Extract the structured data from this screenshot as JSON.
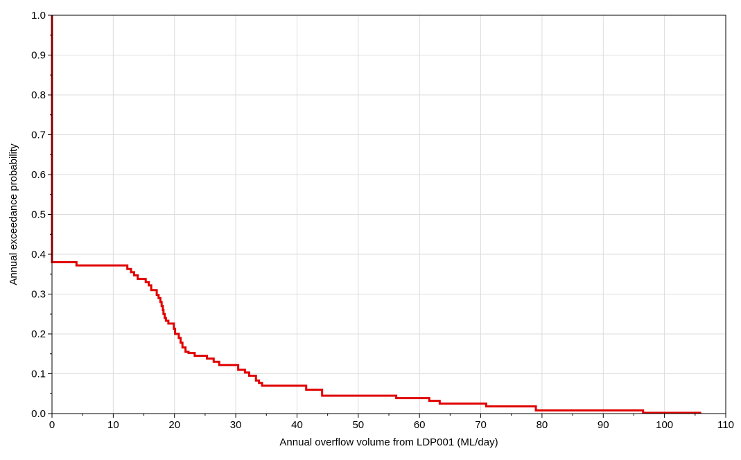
{
  "chart_data": {
    "type": "line",
    "title": "",
    "xlabel": "Annual overflow volume from LDP001 (ML/day)",
    "ylabel": "Annual exceedance probability",
    "xlim": [
      0,
      110
    ],
    "ylim": [
      0,
      1
    ],
    "x_ticks": [
      "0",
      "10",
      "20",
      "30",
      "40",
      "50",
      "60",
      "70",
      "80",
      "90",
      "100",
      "110"
    ],
    "y_ticks": [
      "0.0",
      "0.1",
      "0.2",
      "0.3",
      "0.4",
      "0.5",
      "0.6",
      "0.7",
      "0.8",
      "0.9",
      "1.0"
    ],
    "grid": true,
    "legend": false,
    "series": [
      {
        "color": "#e00000",
        "step": true,
        "points": [
          [
            0,
            1.0
          ],
          [
            0,
            0.38
          ],
          [
            0.5,
            0.38
          ],
          [
            4,
            0.38
          ],
          [
            4,
            0.372
          ],
          [
            12.3,
            0.372
          ],
          [
            12.3,
            0.363
          ],
          [
            12.9,
            0.363
          ],
          [
            12.9,
            0.355
          ],
          [
            13.4,
            0.355
          ],
          [
            13.4,
            0.347
          ],
          [
            14.0,
            0.347
          ],
          [
            14.0,
            0.338
          ],
          [
            15.3,
            0.338
          ],
          [
            15.3,
            0.33
          ],
          [
            15.8,
            0.33
          ],
          [
            15.8,
            0.322
          ],
          [
            16.2,
            0.322
          ],
          [
            16.2,
            0.31
          ],
          [
            17.1,
            0.31
          ],
          [
            17.1,
            0.298
          ],
          [
            17.4,
            0.298
          ],
          [
            17.4,
            0.29
          ],
          [
            17.7,
            0.29
          ],
          [
            17.7,
            0.28
          ],
          [
            17.9,
            0.28
          ],
          [
            17.9,
            0.27
          ],
          [
            18.1,
            0.27
          ],
          [
            18.1,
            0.26
          ],
          [
            18.2,
            0.26
          ],
          [
            18.2,
            0.25
          ],
          [
            18.4,
            0.25
          ],
          [
            18.4,
            0.24
          ],
          [
            18.6,
            0.24
          ],
          [
            18.6,
            0.233
          ],
          [
            19.0,
            0.233
          ],
          [
            19.0,
            0.226
          ],
          [
            19.9,
            0.226
          ],
          [
            19.9,
            0.213
          ],
          [
            20.1,
            0.213
          ],
          [
            20.1,
            0.2
          ],
          [
            20.7,
            0.2
          ],
          [
            20.7,
            0.19
          ],
          [
            21.0,
            0.19
          ],
          [
            21.0,
            0.178
          ],
          [
            21.3,
            0.178
          ],
          [
            21.3,
            0.166
          ],
          [
            21.8,
            0.166
          ],
          [
            21.8,
            0.155
          ],
          [
            22.3,
            0.155
          ],
          [
            22.3,
            0.152
          ],
          [
            23.3,
            0.152
          ],
          [
            23.3,
            0.145
          ],
          [
            25.3,
            0.145
          ],
          [
            25.3,
            0.138
          ],
          [
            26.4,
            0.138
          ],
          [
            26.4,
            0.13
          ],
          [
            27.3,
            0.13
          ],
          [
            27.3,
            0.122
          ],
          [
            30.4,
            0.122
          ],
          [
            30.4,
            0.11
          ],
          [
            31.5,
            0.11
          ],
          [
            31.5,
            0.103
          ],
          [
            32.2,
            0.103
          ],
          [
            32.2,
            0.095
          ],
          [
            33.3,
            0.095
          ],
          [
            33.3,
            0.083
          ],
          [
            33.8,
            0.083
          ],
          [
            33.8,
            0.077
          ],
          [
            34.3,
            0.077
          ],
          [
            34.3,
            0.07
          ],
          [
            41.5,
            0.07
          ],
          [
            41.5,
            0.06
          ],
          [
            44.1,
            0.06
          ],
          [
            44.1,
            0.045
          ],
          [
            56.2,
            0.045
          ],
          [
            56.2,
            0.039
          ],
          [
            61.6,
            0.039
          ],
          [
            61.6,
            0.032
          ],
          [
            63.3,
            0.032
          ],
          [
            63.3,
            0.025
          ],
          [
            70.9,
            0.025
          ],
          [
            70.9,
            0.018
          ],
          [
            79.0,
            0.018
          ],
          [
            79.0,
            0.008
          ],
          [
            96.5,
            0.008
          ],
          [
            96.5,
            0.002
          ],
          [
            106.0,
            0.002
          ]
        ]
      }
    ]
  }
}
